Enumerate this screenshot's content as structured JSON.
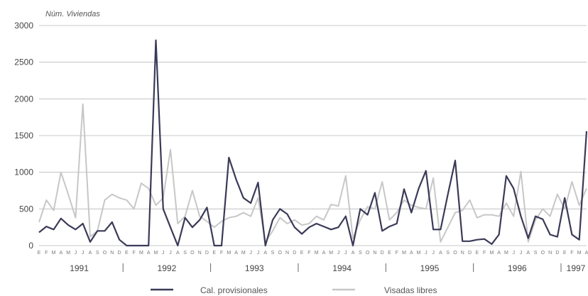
{
  "chart_data": {
    "type": "line",
    "ylabel": "Núm. Viviendas",
    "ylim": [
      0,
      3000
    ],
    "yticks": [
      0,
      500,
      1000,
      1500,
      2000,
      2500,
      3000
    ],
    "grid": true,
    "legend_position": "bottom",
    "month_letters": [
      "E",
      "F",
      "M",
      "A",
      "M",
      "J",
      "J",
      "A",
      "S",
      "O",
      "N",
      "D"
    ],
    "years": [
      "1991",
      "1992",
      "1993",
      "1994",
      "1995",
      "1996",
      "1997"
    ],
    "series": [
      {
        "name": "Cal. provisionales",
        "color": "#3a3a58",
        "values": [
          180,
          260,
          220,
          370,
          280,
          220,
          300,
          50,
          200,
          200,
          320,
          80,
          0,
          0,
          0,
          0,
          2800,
          500,
          250,
          0,
          380,
          250,
          350,
          520,
          0,
          0,
          1200,
          900,
          650,
          580,
          860,
          0,
          350,
          500,
          430,
          250,
          160,
          250,
          300,
          260,
          220,
          250,
          400,
          0,
          500,
          420,
          720,
          200,
          260,
          300,
          770,
          450,
          780,
          1020,
          220,
          220,
          700,
          1160,
          60,
          60,
          80,
          90,
          20,
          150,
          950,
          780,
          400,
          100,
          400,
          360,
          150,
          120,
          650,
          150,
          80,
          1560
        ]
      },
      {
        "name": "Visadas libres",
        "color": "#c7c7c7",
        "values": [
          320,
          620,
          480,
          1000,
          700,
          380,
          1930,
          120,
          200,
          620,
          700,
          650,
          620,
          500,
          850,
          780,
          550,
          650,
          1310,
          300,
          400,
          750,
          400,
          330,
          250,
          330,
          380,
          400,
          450,
          400,
          650,
          50,
          200,
          380,
          300,
          350,
          280,
          300,
          400,
          350,
          560,
          540,
          950,
          100,
          350,
          530,
          500,
          870,
          350,
          450,
          620,
          550,
          520,
          500,
          920,
          50,
          250,
          450,
          480,
          620,
          380,
          420,
          420,
          400,
          580,
          400,
          1010,
          50,
          350,
          500,
          400,
          700,
          500,
          870,
          550,
          780
        ]
      }
    ]
  }
}
